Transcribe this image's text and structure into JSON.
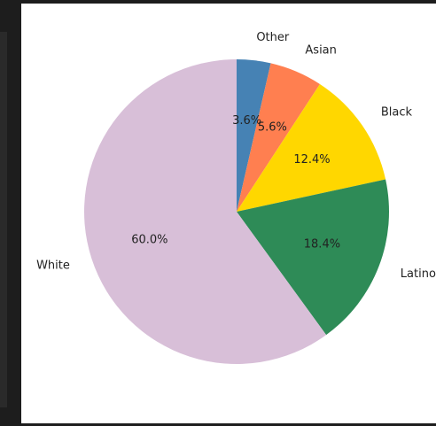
{
  "chart_data": {
    "type": "pie",
    "title": "",
    "start_angle_deg": 90,
    "direction": "clockwise",
    "slices": [
      {
        "label": "Other",
        "value": 3.6,
        "pct_label": "3.6%",
        "color": "#4682b4"
      },
      {
        "label": "Asian",
        "value": 5.6,
        "pct_label": "5.6%",
        "color": "#ff7f50"
      },
      {
        "label": "Black",
        "value": 12.4,
        "pct_label": "12.4%",
        "color": "#ffd700"
      },
      {
        "label": "Latino",
        "value": 18.4,
        "pct_label": "18.4%",
        "color": "#2e8b57"
      },
      {
        "label": "White",
        "value": 60.0,
        "pct_label": "60.0%",
        "color": "#d8bfd8"
      }
    ]
  }
}
